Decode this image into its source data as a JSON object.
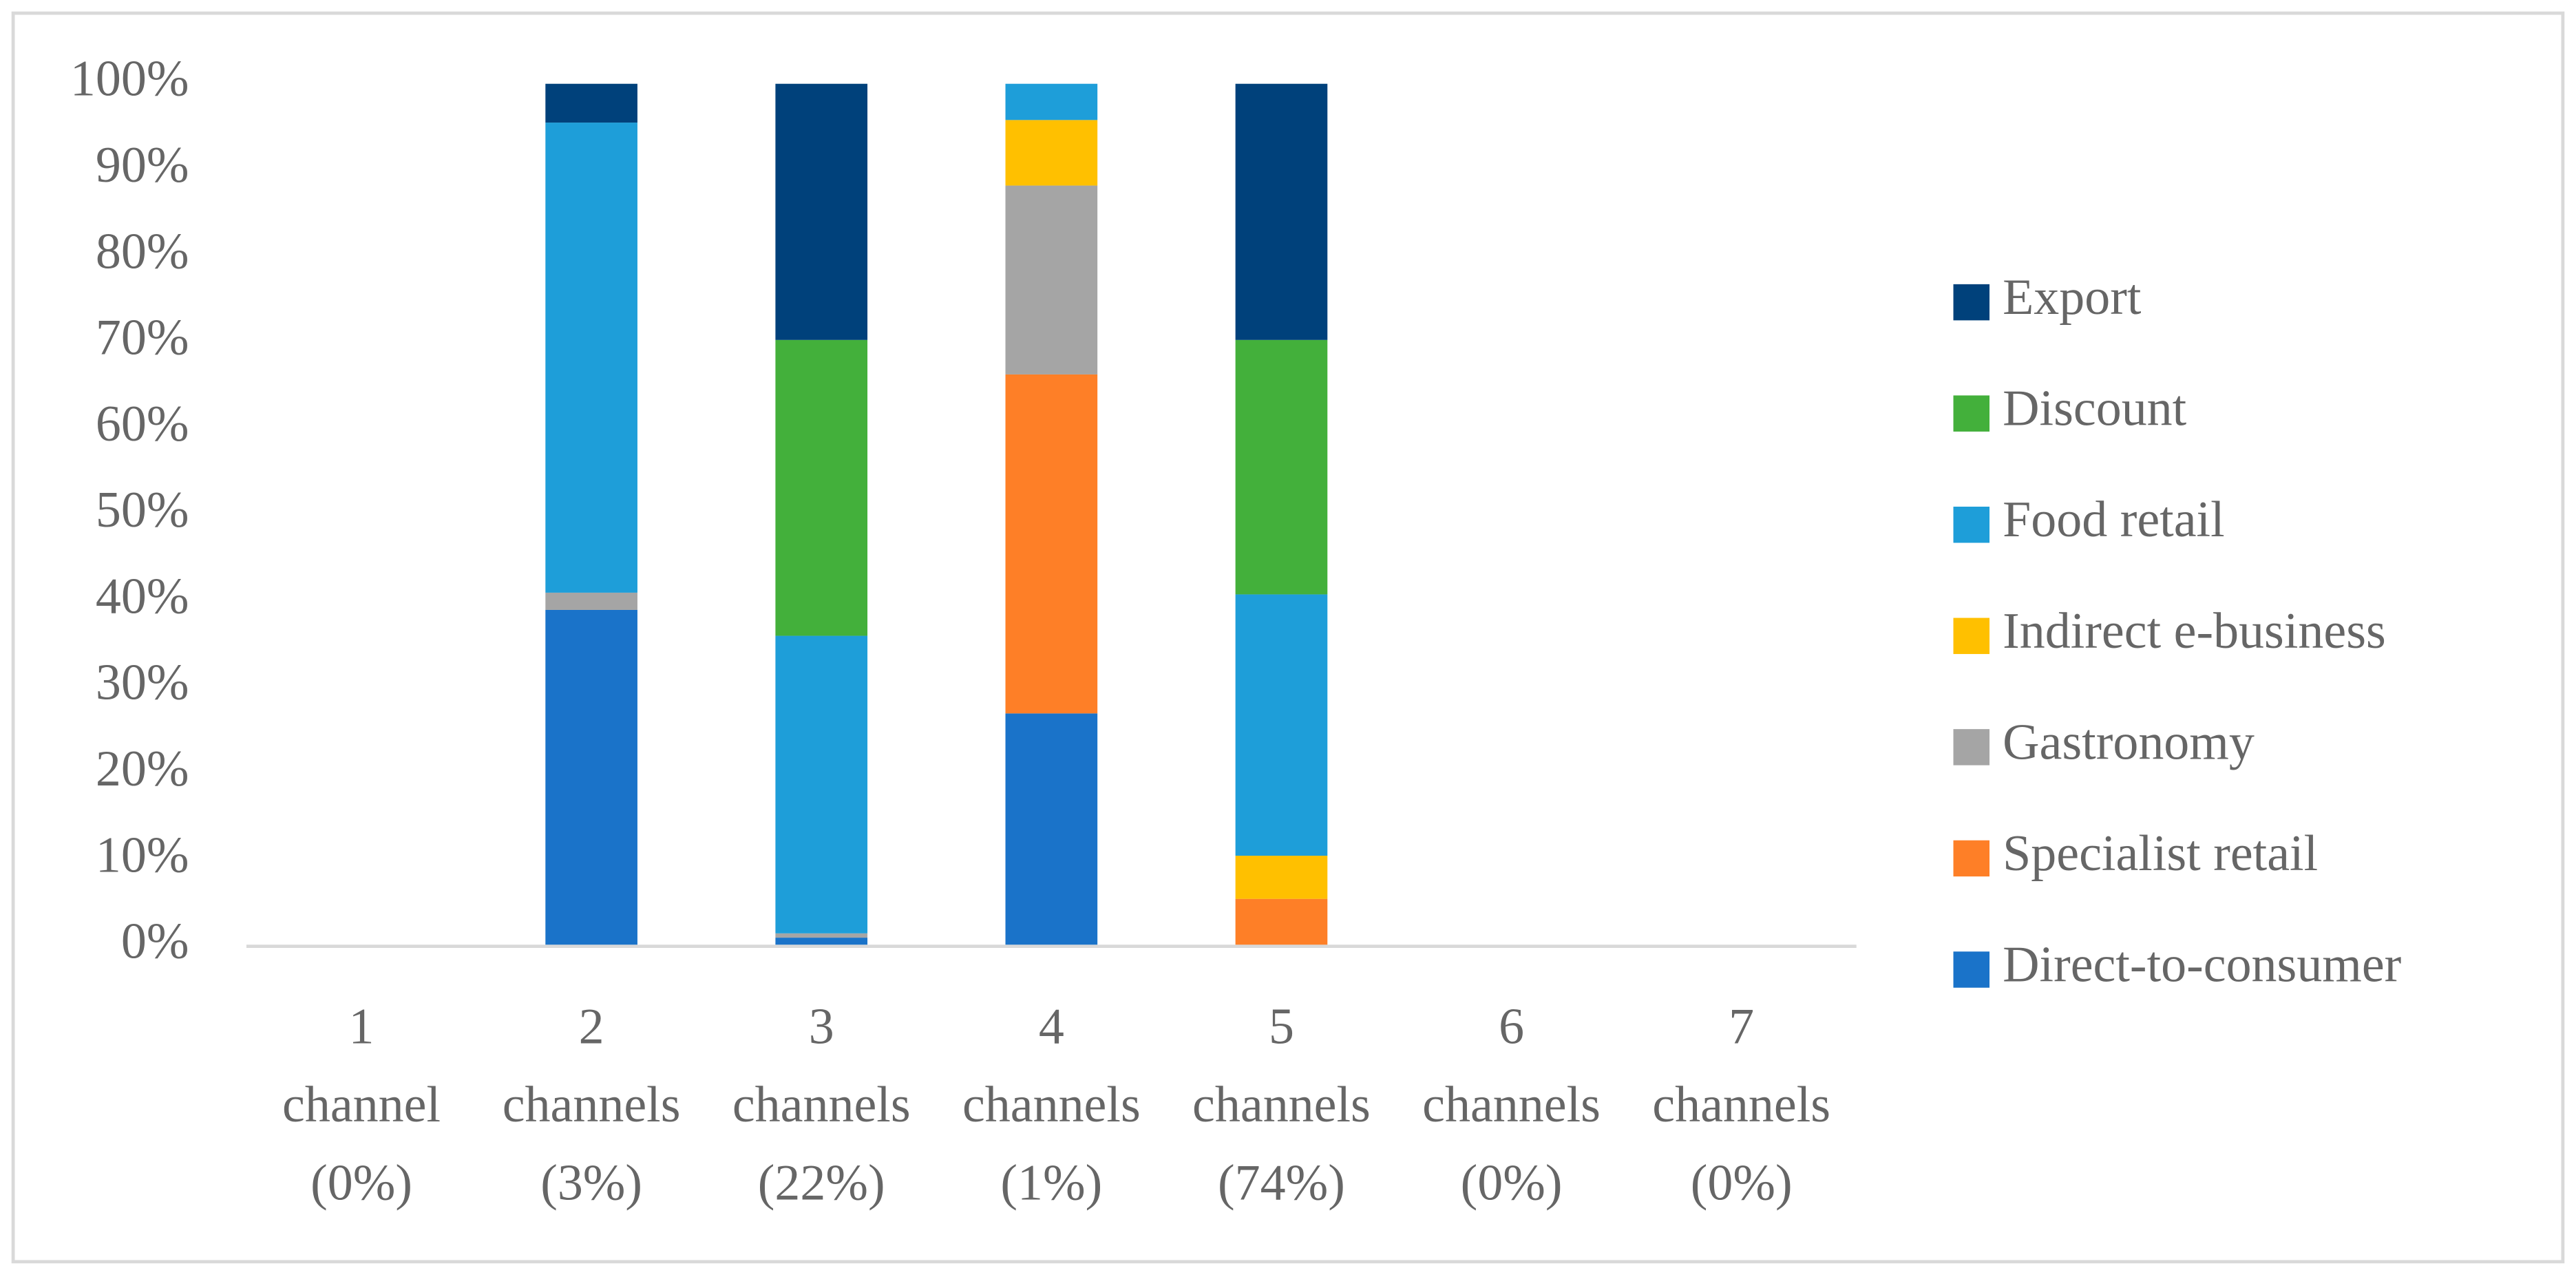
{
  "chart_data": {
    "type": "stacked_bar",
    "categories": [
      [
        "1",
        "channel",
        "(0%)"
      ],
      [
        "2",
        "channels",
        "(3%)"
      ],
      [
        "3",
        "channels",
        "(22%)"
      ],
      [
        "4",
        "channels",
        "(1%)"
      ],
      [
        "5",
        "channels",
        "(74%)"
      ],
      [
        "6",
        "channels",
        "(0%)"
      ],
      [
        "7",
        "channels",
        "(0%)"
      ]
    ],
    "series": [
      {
        "name": "Direct-to-consumer",
        "color": "#1a73c9",
        "values": [
          0,
          39,
          1,
          27,
          0,
          0,
          0
        ]
      },
      {
        "name": "Specialist retail",
        "color": "#fe7f27",
        "values": [
          0,
          0,
          0,
          39.3,
          5.5,
          0,
          0
        ]
      },
      {
        "name": "Gastronomy",
        "color": "#a5a5a5",
        "values": [
          0,
          2,
          0.5,
          21.9,
          0,
          0,
          0
        ]
      },
      {
        "name": "Indirect e-business",
        "color": "#ffc000",
        "values": [
          0,
          0,
          0,
          7.6,
          5,
          0,
          0
        ]
      },
      {
        "name": "Food retail",
        "color": "#1e9ed9",
        "values": [
          0,
          54.5,
          34.5,
          4.2,
          30.3,
          0,
          0
        ]
      },
      {
        "name": "Discount",
        "color": "#43b03b",
        "values": [
          0,
          0,
          34.3,
          0,
          29.5,
          0,
          0
        ]
      },
      {
        "name": "Export",
        "color": "#00417b",
        "values": [
          0,
          4.5,
          29.7,
          0,
          29.7,
          0,
          0
        ]
      }
    ],
    "ylim": [
      0,
      100
    ],
    "yticks": [
      {
        "value": 0,
        "label": "0%"
      },
      {
        "value": 10,
        "label": "10%"
      },
      {
        "value": 20,
        "label": "20%"
      },
      {
        "value": 30,
        "label": "30%"
      },
      {
        "value": 40,
        "label": "40%"
      },
      {
        "value": 50,
        "label": "50%"
      },
      {
        "value": 60,
        "label": "60%"
      },
      {
        "value": 70,
        "label": "70%"
      },
      {
        "value": 80,
        "label": "80%"
      },
      {
        "value": 90,
        "label": "90%"
      },
      {
        "value": 100,
        "label": "100%"
      }
    ],
    "grid": false,
    "legend": "right"
  }
}
